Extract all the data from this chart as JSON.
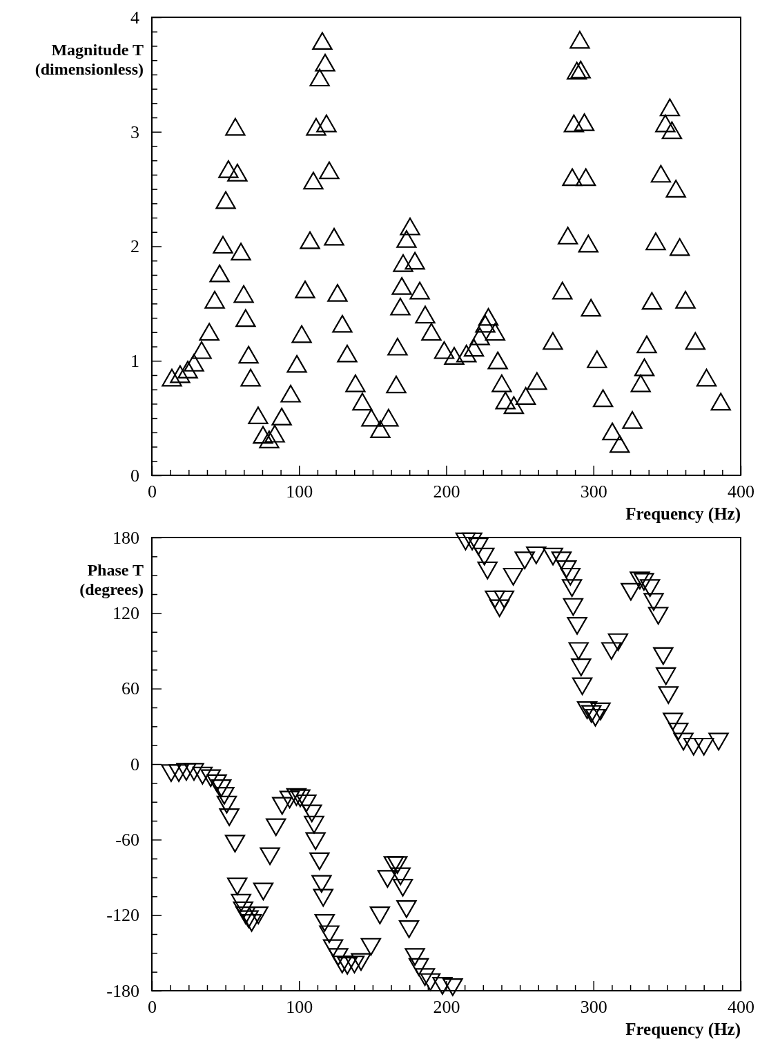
{
  "chart_data": [
    {
      "type": "scatter",
      "xlabel": "Frequency (Hz)",
      "ylabel": "Magnitude T\n(dimensionless)",
      "marker": "triangle",
      "xlim": [
        0,
        400
      ],
      "ylim": [
        0,
        4
      ],
      "xticks": [
        0,
        {
          "value": 12.5,
          "label": null
        },
        {
          "value": 25,
          "label": null
        },
        {
          "value": 37.5,
          "label": null
        },
        {
          "value": 50,
          "label": null
        },
        {
          "value": 62.5,
          "label": null
        },
        {
          "value": 75,
          "label": null
        },
        {
          "value": 87.5,
          "label": null
        },
        100,
        {
          "value": 112.5,
          "label": null
        },
        {
          "value": 125,
          "label": null
        },
        {
          "value": 137.5,
          "label": null
        },
        {
          "value": 150,
          "label": null
        },
        {
          "value": 162.5,
          "label": null
        },
        {
          "value": 175,
          "label": null
        },
        {
          "value": 187.5,
          "label": null
        },
        200,
        {
          "value": 212.5,
          "label": null
        },
        {
          "value": 225,
          "label": null
        },
        {
          "value": 237.5,
          "label": null
        },
        {
          "value": 250,
          "label": null
        },
        {
          "value": 262.5,
          "label": null
        },
        {
          "value": 275,
          "label": null
        },
        {
          "value": 287.5,
          "label": null
        },
        300,
        {
          "value": 312.5,
          "label": null
        },
        {
          "value": 325,
          "label": null
        },
        {
          "value": 337.5,
          "label": null
        },
        {
          "value": 350,
          "label": null
        },
        {
          "value": 362.5,
          "label": null
        },
        {
          "value": 375,
          "label": null
        },
        {
          "value": 387.5,
          "label": null
        },
        400
      ],
      "yticks": [
        0,
        {
          "value": 0.125,
          "label": null
        },
        {
          "value": 0.25,
          "label": null
        },
        {
          "value": 0.375,
          "label": null
        },
        {
          "value": 0.5,
          "label": null
        },
        {
          "value": 0.625,
          "label": null
        },
        {
          "value": 0.75,
          "label": null
        },
        {
          "value": 0.875,
          "label": null
        },
        1,
        {
          "value": 1.125,
          "label": null
        },
        {
          "value": 1.25,
          "label": null
        },
        {
          "value": 1.375,
          "label": null
        },
        {
          "value": 1.5,
          "label": null
        },
        {
          "value": 1.625,
          "label": null
        },
        {
          "value": 1.75,
          "label": null
        },
        {
          "value": 1.875,
          "label": null
        },
        2,
        {
          "value": 2.125,
          "label": null
        },
        {
          "value": 2.25,
          "label": null
        },
        {
          "value": 2.375,
          "label": null
        },
        {
          "value": 2.5,
          "label": null
        },
        {
          "value": 2.625,
          "label": null
        },
        {
          "value": 2.75,
          "label": null
        },
        {
          "value": 2.875,
          "label": null
        },
        3,
        {
          "value": 3.125,
          "label": null
        },
        {
          "value": 3.25,
          "label": null
        },
        {
          "value": 3.375,
          "label": null
        },
        {
          "value": 3.5,
          "label": null
        },
        {
          "value": 3.625,
          "label": null
        },
        {
          "value": 3.75,
          "label": null
        },
        {
          "value": 3.875,
          "label": null
        },
        4
      ],
      "series": [
        {
          "color": "#000000",
          "x": [
            13.6,
            19.2,
            24.4,
            28.6,
            33.8,
            39,
            42.7,
            46,
            48.3,
            50.2,
            52,
            56.7,
            58.1,
            60.5,
            62.4,
            63.7,
            65.7,
            67.1,
            72.2,
            75.5,
            79.7,
            83.5,
            88.2,
            94.3,
            98.5,
            101.8,
            104.1,
            107.4,
            109.7,
            111.6,
            114,
            115.8,
            117.7,
            118.6,
            120.5,
            123.8,
            126.1,
            129.4,
            132.7,
            138.3,
            143,
            149.1,
            155.2,
            160.8,
            166,
            166.9,
            168.8,
            169.8,
            170.7,
            173,
            175.4,
            178.7,
            182,
            185.7,
            189.9,
            198.6,
            205.4,
            213.7,
            218.8,
            222.8,
            226.5,
            228.6,
            233.2,
            235,
            237.7,
            240.2,
            245.9,
            254,
            261.6,
            272.4,
            278.9,
            282.6,
            285.6,
            286.7,
            288.7,
            291.3,
            290.7,
            293.8,
            294.8,
            296.5,
            298.3,
            302.4,
            306.5,
            312.8,
            317.8,
            326.4,
            332.1,
            334.6,
            336.2,
            339.7,
            342.3,
            345.8,
            348.8,
            351.9,
            353.3,
            356,
            358.6,
            362.5,
            369.2,
            376.8,
            386.5
          ],
          "values": [
            0.83,
            0.86,
            0.9,
            0.96,
            1.07,
            1.23,
            1.51,
            1.74,
            1.99,
            2.38,
            2.65,
            3.02,
            2.62,
            1.93,
            1.56,
            1.35,
            1.03,
            0.83,
            0.5,
            0.33,
            0.29,
            0.34,
            0.49,
            0.69,
            0.95,
            1.21,
            1.6,
            2.03,
            2.55,
            3.02,
            3.45,
            3.77,
            3.58,
            3.05,
            2.64,
            2.06,
            1.57,
            1.3,
            1.04,
            0.78,
            0.62,
            0.48,
            0.38,
            0.48,
            0.77,
            1.1,
            1.45,
            1.63,
            1.83,
            2.04,
            2.15,
            1.85,
            1.59,
            1.38,
            1.23,
            1.07,
            1.02,
            1.04,
            1.09,
            1.19,
            1.3,
            1.36,
            1.23,
            0.98,
            0.78,
            0.63,
            0.59,
            0.67,
            0.8,
            1.15,
            1.59,
            2.07,
            2.58,
            3.05,
            3.51,
            3.52,
            3.78,
            3.06,
            2.58,
            2,
            1.44,
            0.99,
            0.65,
            0.36,
            0.25,
            0.46,
            0.78,
            0.92,
            1.12,
            1.5,
            2.02,
            2.61,
            3.05,
            3.19,
            2.99,
            2.48,
            1.97,
            1.51,
            1.15,
            0.83,
            0.62
          ]
        }
      ]
    },
    {
      "type": "scatter",
      "xlabel": "Frequency (Hz)",
      "ylabel": "Phase T\n(degrees)",
      "marker": "triangle-down",
      "xlim": [
        0,
        400
      ],
      "ylim": [
        -180,
        180
      ],
      "xticks": [
        0,
        {
          "value": 12.5,
          "label": null
        },
        {
          "value": 25,
          "label": null
        },
        {
          "value": 37.5,
          "label": null
        },
        {
          "value": 50,
          "label": null
        },
        {
          "value": 62.5,
          "label": null
        },
        {
          "value": 75,
          "label": null
        },
        {
          "value": 87.5,
          "label": null
        },
        100,
        {
          "value": 112.5,
          "label": null
        },
        {
          "value": 125,
          "label": null
        },
        {
          "value": 137.5,
          "label": null
        },
        {
          "value": 150,
          "label": null
        },
        {
          "value": 162.5,
          "label": null
        },
        {
          "value": 175,
          "label": null
        },
        {
          "value": 187.5,
          "label": null
        },
        200,
        {
          "value": 212.5,
          "label": null
        },
        {
          "value": 225,
          "label": null
        },
        {
          "value": 237.5,
          "label": null
        },
        {
          "value": 250,
          "label": null
        },
        {
          "value": 262.5,
          "label": null
        },
        {
          "value": 275,
          "label": null
        },
        {
          "value": 287.5,
          "label": null
        },
        300,
        {
          "value": 312.5,
          "label": null
        },
        {
          "value": 325,
          "label": null
        },
        {
          "value": 337.5,
          "label": null
        },
        {
          "value": 350,
          "label": null
        },
        {
          "value": 362.5,
          "label": null
        },
        {
          "value": 375,
          "label": null
        },
        {
          "value": 387.5,
          "label": null
        },
        400
      ],
      "yticks": [
        -180,
        {
          "value": -165,
          "label": null
        },
        {
          "value": -150,
          "label": null
        },
        {
          "value": -135,
          "label": null
        },
        -120,
        {
          "value": -105,
          "label": null
        },
        {
          "value": -90,
          "label": null
        },
        {
          "value": -75,
          "label": null
        },
        -60,
        {
          "value": -45,
          "label": null
        },
        {
          "value": -30,
          "label": null
        },
        {
          "value": -15,
          "label": null
        },
        0,
        {
          "value": 15,
          "label": null
        },
        {
          "value": 30,
          "label": null
        },
        {
          "value": 45,
          "label": null
        },
        60,
        {
          "value": 75,
          "label": null
        },
        {
          "value": 90,
          "label": null
        },
        {
          "value": 105,
          "label": null
        },
        120,
        {
          "value": 135,
          "label": null
        },
        {
          "value": 150,
          "label": null
        },
        {
          "value": 165,
          "label": null
        },
        180
      ],
      "series": [
        {
          "color": "#000000",
          "x": [
            13.1,
            18.3,
            23.4,
            28.6,
            34.4,
            40,
            44.1,
            47.2,
            49.2,
            50.9,
            52.6,
            56.5,
            58,
            60.6,
            62,
            63.7,
            65.7,
            67.8,
            72.3,
            75.7,
            80.2,
            84.3,
            88.5,
            93.6,
            98.2,
            100.8,
            105,
            108.7,
            110.2,
            111.2,
            113.9,
            115.3,
            116.4,
            117.4,
            120.5,
            123.1,
            126.6,
            129.3,
            132.8,
            137.6,
            142.1,
            148.8,
            154.9,
            160.1,
            164.3,
            166.8,
            168.9,
            170.5,
            173,
            174.7,
            178.7,
            181.3,
            185.5,
            189.2,
            197.4,
            204.4,
            213.1,
            217.6,
            221.8,
            225.9,
            228,
            233.1,
            239.3,
            236.2,
            245.5,
            253.3,
            261.1,
            272.5,
            278.3,
            281.7,
            284.3,
            285.4,
            286.2,
            288.9,
            289.9,
            291.6,
            292.4,
            295.7,
            298.6,
            301.3,
            304.8,
            312.2,
            316.7,
            325.4,
            331.5,
            334.3,
            338.4,
            340.9,
            344,
            347.4,
            349.2,
            350.9,
            354,
            357.7,
            361.1,
            368,
            375,
            385
          ],
          "values": [
            -5,
            -5,
            -4,
            -4,
            -7,
            -9,
            -13,
            -17,
            -23,
            -30,
            -40,
            -61,
            -95,
            -108,
            -114,
            -118,
            -121,
            -124,
            -118,
            -99,
            -71,
            -48,
            -31,
            -26,
            -24,
            -25,
            -29,
            -37,
            -46,
            -59,
            -75,
            -93,
            -104,
            -124,
            -133,
            -144,
            -151,
            -157,
            -158,
            -157,
            -155,
            -143,
            -118,
            -89,
            -78,
            -78,
            -87,
            -96,
            -113,
            -129,
            -151,
            -159,
            -167,
            -171,
            -174,
            -175,
            179,
            179,
            175,
            167,
            156,
            133,
            133,
            126,
            151,
            164,
            168,
            167,
            164,
            157,
            151,
            142,
            127,
            112,
            92,
            79,
            64,
            45,
            42,
            39,
            44,
            92,
            99,
            139,
            148,
            147,
            142,
            131,
            120,
            88,
            72,
            57,
            36,
            28,
            20,
            16,
            16,
            20
          ]
        }
      ]
    }
  ]
}
